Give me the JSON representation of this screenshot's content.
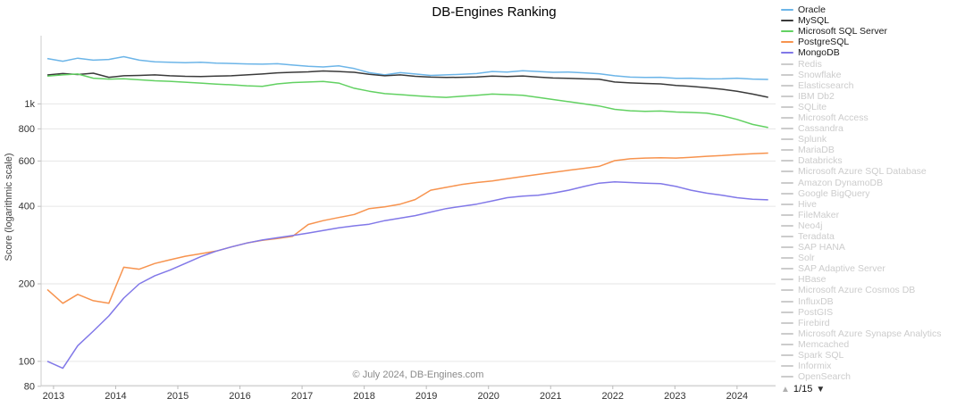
{
  "title": "DB-Engines Ranking",
  "ylabel": "Score (logarithmic scale)",
  "footer": "© July 2024, DB-Engines.com",
  "pagination": {
    "up": "▲",
    "label": "1/15",
    "down": "▼"
  },
  "legend": {
    "active_text_color": "#1a1a1a",
    "inactive_color": "#cccccc",
    "items": [
      {
        "label": "Oracle",
        "color": "#6cb5e8",
        "active": true
      },
      {
        "label": "MySQL",
        "color": "#3a3a3a",
        "active": true
      },
      {
        "label": "Microsoft SQL Server",
        "color": "#62d162",
        "active": true
      },
      {
        "label": "PostgreSQL",
        "color": "#f7934e",
        "active": true
      },
      {
        "label": "MongoDB",
        "color": "#8178e8",
        "active": true
      },
      {
        "label": "Redis",
        "color": "#cccccc",
        "active": false
      },
      {
        "label": "Snowflake",
        "color": "#cccccc",
        "active": false
      },
      {
        "label": "Elasticsearch",
        "color": "#cccccc",
        "active": false
      },
      {
        "label": "IBM Db2",
        "color": "#cccccc",
        "active": false
      },
      {
        "label": "SQLite",
        "color": "#cccccc",
        "active": false
      },
      {
        "label": "Microsoft Access",
        "color": "#cccccc",
        "active": false
      },
      {
        "label": "Cassandra",
        "color": "#cccccc",
        "active": false
      },
      {
        "label": "Splunk",
        "color": "#cccccc",
        "active": false
      },
      {
        "label": "MariaDB",
        "color": "#cccccc",
        "active": false
      },
      {
        "label": "Databricks",
        "color": "#cccccc",
        "active": false
      },
      {
        "label": "Microsoft Azure SQL Database",
        "color": "#cccccc",
        "active": false
      },
      {
        "label": "Amazon DynamoDB",
        "color": "#cccccc",
        "active": false
      },
      {
        "label": "Google BigQuery",
        "color": "#cccccc",
        "active": false
      },
      {
        "label": "Hive",
        "color": "#cccccc",
        "active": false
      },
      {
        "label": "FileMaker",
        "color": "#cccccc",
        "active": false
      },
      {
        "label": "Neo4j",
        "color": "#cccccc",
        "active": false
      },
      {
        "label": "Teradata",
        "color": "#cccccc",
        "active": false
      },
      {
        "label": "SAP HANA",
        "color": "#cccccc",
        "active": false
      },
      {
        "label": "Solr",
        "color": "#cccccc",
        "active": false
      },
      {
        "label": "SAP Adaptive Server",
        "color": "#cccccc",
        "active": false
      },
      {
        "label": "HBase",
        "color": "#cccccc",
        "active": false
      },
      {
        "label": "Microsoft Azure Cosmos DB",
        "color": "#cccccc",
        "active": false
      },
      {
        "label": "InfluxDB",
        "color": "#cccccc",
        "active": false
      },
      {
        "label": "PostGIS",
        "color": "#cccccc",
        "active": false
      },
      {
        "label": "Firebird",
        "color": "#cccccc",
        "active": false
      },
      {
        "label": "Microsoft Azure Synapse Analytics",
        "color": "#cccccc",
        "active": false
      },
      {
        "label": "Memcached",
        "color": "#cccccc",
        "active": false
      },
      {
        "label": "Spark SQL",
        "color": "#cccccc",
        "active": false
      },
      {
        "label": "Informix",
        "color": "#cccccc",
        "active": false
      },
      {
        "label": "OpenSearch",
        "color": "#cccccc",
        "active": false
      }
    ]
  },
  "chart_data": {
    "type": "line",
    "title": "DB-Engines Ranking",
    "xlabel": "",
    "ylabel": "Score (logarithmic scale)",
    "yscale": "log",
    "grid": "horizontal",
    "legend_position": "right",
    "xlim": [
      2012.8,
      2024.62
    ],
    "ylim": [
      80.5,
      1840
    ],
    "xticks": [
      2013,
      2014,
      2015,
      2016,
      2017,
      2018,
      2019,
      2020,
      2021,
      2022,
      2023,
      2024
    ],
    "yticks": [
      {
        "v": 1000,
        "label": "1k"
      },
      {
        "v": 800,
        "label": "800"
      },
      {
        "v": 600,
        "label": "600"
      },
      {
        "v": 400,
        "label": "400"
      },
      {
        "v": 200,
        "label": "200"
      },
      {
        "v": 100,
        "label": "100"
      },
      {
        "v": 80,
        "label": "80"
      }
    ],
    "x": [
      2012.9,
      2013.15,
      2013.39,
      2013.64,
      2013.89,
      2014.13,
      2014.38,
      2014.63,
      2014.87,
      2015.12,
      2015.37,
      2015.62,
      2015.86,
      2016.11,
      2016.36,
      2016.6,
      2016.85,
      2017.1,
      2017.34,
      2017.59,
      2017.84,
      2018.08,
      2018.33,
      2018.58,
      2018.82,
      2019.07,
      2019.32,
      2019.56,
      2019.81,
      2020.06,
      2020.3,
      2020.55,
      2020.8,
      2021.04,
      2021.29,
      2021.54,
      2021.78,
      2022.03,
      2022.28,
      2022.52,
      2022.77,
      2023.02,
      2023.26,
      2023.51,
      2023.76,
      2024,
      2024.25,
      2024.5
    ],
    "series": [
      {
        "name": "Oracle",
        "color": "#6cb5e8",
        "values": [
          1500,
          1465,
          1505,
          1478,
          1488,
          1525,
          1478,
          1458,
          1450,
          1446,
          1452,
          1440,
          1436,
          1430,
          1426,
          1432,
          1415,
          1400,
          1392,
          1405,
          1372,
          1322,
          1296,
          1322,
          1306,
          1290,
          1296,
          1302,
          1312,
          1336,
          1330,
          1346,
          1336,
          1326,
          1330,
          1320,
          1310,
          1286,
          1270,
          1266,
          1268,
          1256,
          1258,
          1250,
          1252,
          1258,
          1248,
          1244
        ]
      },
      {
        "name": "MySQL",
        "color": "#3a3a3a",
        "values": [
          1295,
          1312,
          1300,
          1316,
          1268,
          1286,
          1290,
          1296,
          1286,
          1280,
          1278,
          1282,
          1286,
          1296,
          1306,
          1320,
          1326,
          1332,
          1342,
          1336,
          1326,
          1302,
          1286,
          1296,
          1280,
          1270,
          1266,
          1268,
          1272,
          1282,
          1278,
          1284,
          1270,
          1260,
          1256,
          1250,
          1246,
          1216,
          1206,
          1200,
          1196,
          1180,
          1170,
          1156,
          1140,
          1120,
          1092,
          1061
        ]
      },
      {
        "name": "Microsoft SQL Server",
        "color": "#62d162",
        "values": [
          1282,
          1296,
          1306,
          1258,
          1248,
          1252,
          1240,
          1230,
          1224,
          1214,
          1204,
          1194,
          1186,
          1176,
          1170,
          1196,
          1210,
          1216,
          1222,
          1204,
          1150,
          1120,
          1096,
          1086,
          1076,
          1066,
          1060,
          1070,
          1080,
          1092,
          1086,
          1080,
          1060,
          1040,
          1020,
          1000,
          982,
          952,
          940,
          936,
          938,
          930,
          926,
          920,
          900,
          870,
          832,
          809
        ]
      },
      {
        "name": "PostgreSQL",
        "color": "#f7934e",
        "values": [
          190,
          168,
          182,
          172,
          168,
          232,
          228,
          240,
          248,
          256,
          262,
          268,
          278,
          288,
          295,
          300,
          306,
          340,
          352,
          362,
          372,
          392,
          398,
          408,
          425,
          462,
          474,
          486,
          495,
          502,
          512,
          522,
          532,
          542,
          552,
          562,
          572,
          602,
          612,
          616,
          618,
          616,
          620,
          626,
          630,
          636,
          640,
          644
        ]
      },
      {
        "name": "MongoDB",
        "color": "#8178e8",
        "values": [
          100,
          94,
          115,
          131,
          150,
          176,
          200,
          215,
          226,
          240,
          255,
          268,
          278,
          288,
          296,
          302,
          308,
          315,
          322,
          330,
          336,
          341,
          352,
          360,
          368,
          380,
          392,
          400,
          408,
          420,
          432,
          438,
          442,
          450,
          462,
          478,
          492,
          498,
          495,
          492,
          490,
          478,
          462,
          450,
          442,
          432,
          426,
          424
        ]
      }
    ]
  }
}
